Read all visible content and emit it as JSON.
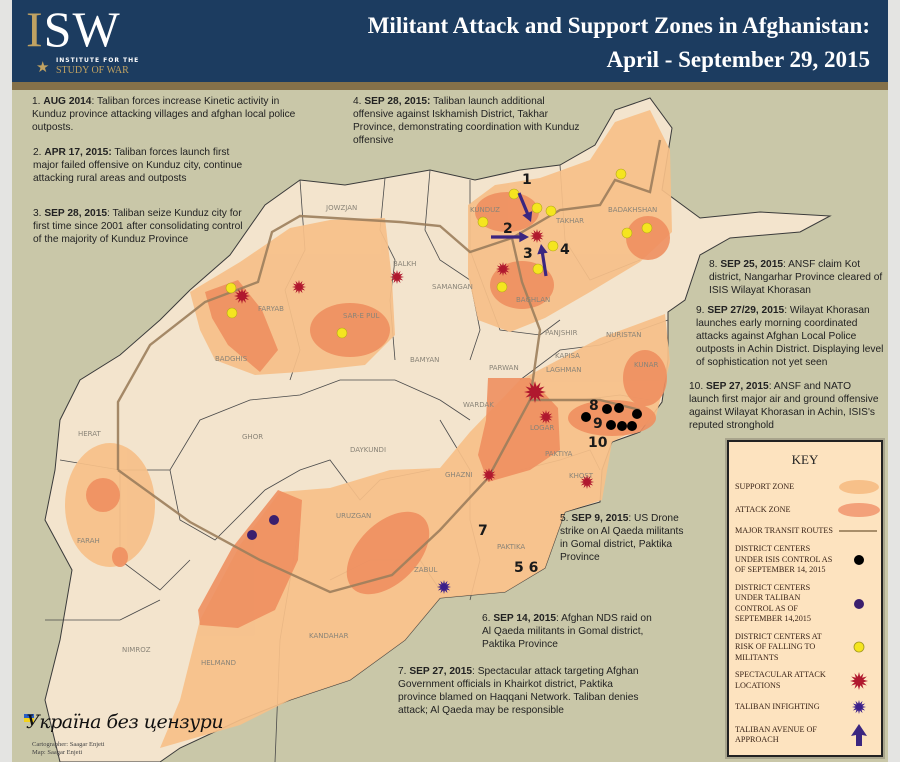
{
  "header": {
    "logo": {
      "letters": "ISW",
      "line1": "INSTITUTE FOR THE",
      "line2": "STUDY OF WAR"
    },
    "title": "Militant Attack and Support Zones in Afghanistan:",
    "subtitle": "April - September 29, 2015"
  },
  "annotations": [
    {
      "num": "1.",
      "date": "AUG 2014",
      "text": ": Taliban forces increase Kinetic activity in Kunduz province attacking villages and afghan local police outposts."
    },
    {
      "num": "2.",
      "date": "APR 17, 2015:",
      "text": " Taliban forces launch first major failed offensive on Kunduz city, continue attacking rural areas and outposts"
    },
    {
      "num": "3.",
      "date": "SEP 28, 2015",
      "text": ": Taliban seize Kunduz city for first time since 2001 after consolidating control of the majority of Kunduz Province"
    },
    {
      "num": "4.",
      "date": "SEP 28, 2015:",
      "text": " Taliban launch additional offensive against Iskhamish District, Takhar Province, demonstrating coordination with Kunduz offensive"
    },
    {
      "num": "5.",
      "date": "SEP 9, 2015",
      "text": ": US Drone strike on Al Qaeda militants in Gomal district, Paktika Province"
    },
    {
      "num": "6.",
      "date": "SEP 14, 2015",
      "text": ": Afghan NDS raid on Al Qaeda militants in Gomal district, Paktika Province"
    },
    {
      "num": "7.",
      "date": "SEP 27, 2015",
      "text": ": Spectacular attack targeting Afghan Government officials in Khairkot district, Paktika province blamed on Haqqani Network. Taliban denies attack; Al Qaeda may be responsible"
    },
    {
      "num": "8.",
      "date": "SEP 25, 2015",
      "text": ": ANSF claim Kot district, Nangarhar Province cleared of ISIS Wilayat Khorasan"
    },
    {
      "num": "9.",
      "date": "SEP 27/29, 2015",
      "text": ": Wilayat Khorasan launches early morning coordinated attacks against Afghan Local Police outposts in Achin District. Displaying level of sophistication not yet seen"
    },
    {
      "num": "10.",
      "date": "SEP 27, 2015",
      "text": ": ANSF and NATO launch first major air and ground offensive against Wilayat Khorasan in Achin, ISIS's reputed stronghold"
    }
  ],
  "map": {
    "provinces": [
      "JOWZJAN",
      "BALKH",
      "SAMANGAN",
      "FARYAB",
      "SAR-E PUL",
      "BADGHIS",
      "BAMYAN",
      "KUNDUZ",
      "TAKHAR",
      "BADAKHSHAN",
      "BAGHLAN",
      "PANJSHIR",
      "NURISTAN",
      "PARWAN",
      "KAPISA",
      "LAGHMAN",
      "KUNAR",
      "WARDAK",
      "LOGAR",
      "PAKTIYA",
      "KHOST",
      "GHAZNI",
      "HERAT",
      "GHOR",
      "DAYKUNDI",
      "URUZGAN",
      "FARAH",
      "ZABUL",
      "PAKTIKA",
      "KANDAHAR",
      "HELMAND",
      "NIMROZ"
    ],
    "event_numbers": [
      "1",
      "2",
      "3",
      "4",
      "5 6",
      "7",
      "8",
      "9",
      "10"
    ]
  },
  "colors": {
    "background": "#c9c7a8",
    "land": "#f3e4cd",
    "support_zone": "#f7c089",
    "attack_zone": "#ef8f60",
    "route": "#9c7e5c",
    "isis_control": "#000000",
    "taliban_control": "#3b1f6e",
    "at_risk": "#f5e51f",
    "spectacular_attack": "#b0182e",
    "taliban_infighting": "#3b1f8a",
    "avenue_of_approach": "#3b2680",
    "header": "#1c3c60"
  },
  "key": {
    "title": "KEY",
    "items": [
      {
        "label": "SUPPORT ZONE",
        "icon": "support-zone-swatch"
      },
      {
        "label": "ATTACK ZONE",
        "icon": "attack-zone-swatch"
      },
      {
        "label": "MAJOR TRANSIT ROUTES",
        "icon": "route-line"
      },
      {
        "label": "DISTRICT CENTERS UNDER ISIS CONTROL AS OF SEPTEMBER 14, 2015",
        "icon": "black-dot"
      },
      {
        "label": "DISTRICT CENTERS UNDER TALIBAN CONTROL AS OF SEPTEMBER 14,2015",
        "icon": "purple-dot"
      },
      {
        "label": "DISTRICT CENTERS AT RISK OF FALLING TO MILITANTS",
        "icon": "yellow-dot"
      },
      {
        "label": "SPECTACULAR ATTACK LOCATIONS",
        "icon": "red-starburst"
      },
      {
        "label": "TALIBAN INFIGHTING",
        "icon": "purple-starburst"
      },
      {
        "label": "TALIBAN AVENUE OF APPROACH",
        "icon": "arrow"
      }
    ]
  },
  "credit": {
    "line1": "Cartographer: Saagar Enjeti",
    "line2": "Map: Saagar Enjeti"
  },
  "watermark": "Україна без цензури"
}
